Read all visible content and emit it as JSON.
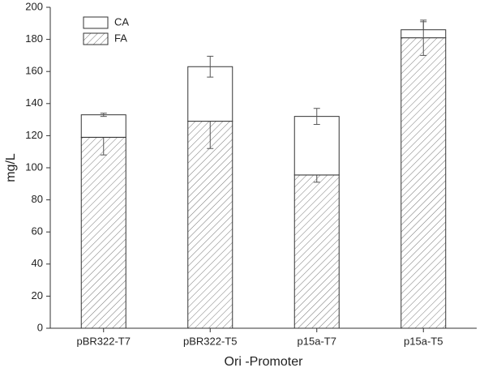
{
  "chart_data": {
    "type": "stacked-bar",
    "x_label": "Ori -Promoter",
    "y_label": "mg/L",
    "categories": [
      "pBR322-T7",
      "pBR322-T5",
      "p15a-T7",
      "p15a-T5"
    ],
    "series": [
      {
        "name": "FA",
        "color": "#ffffff",
        "hatch": true,
        "values": [
          119,
          129,
          95.5,
          181
        ],
        "errors": [
          11,
          17,
          4.5,
          11
        ]
      },
      {
        "name": "CA",
        "color": "#ffffff",
        "hatch": false,
        "values": [
          14,
          34,
          36.5,
          5
        ],
        "errors": [
          1,
          6.5,
          5,
          5
        ]
      }
    ],
    "ylim": [
      0,
      200
    ],
    "yticks": [
      0,
      20,
      40,
      60,
      80,
      100,
      120,
      140,
      160,
      180,
      200
    ],
    "legend": "top-left"
  }
}
